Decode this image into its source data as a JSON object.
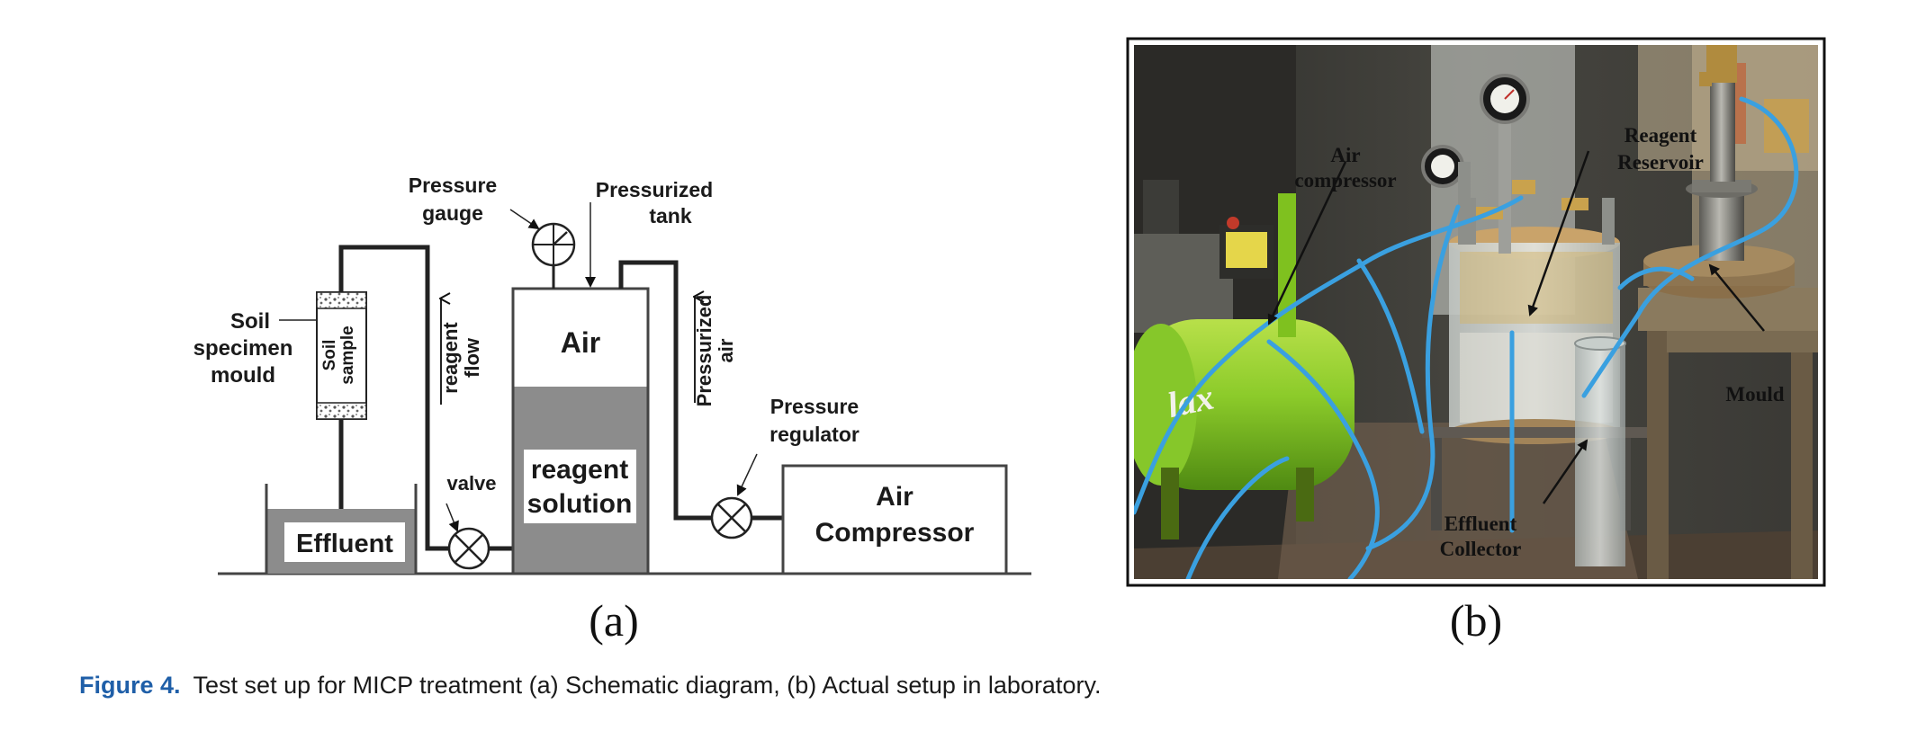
{
  "figure": {
    "caption_label": "Figure 4.",
    "caption_text": "Test set up for MICP treatment (a) Schematic diagram, (b) Actual setup in laboratory.",
    "accent_color": "#1f5fa8"
  },
  "panel_a": {
    "sublabel": "(a)",
    "labels": {
      "pressure_gauge_1": "Pressure",
      "pressure_gauge_2": "gauge",
      "pressurized_tank_1": "Pressurized",
      "pressurized_tank_2": "tank",
      "soil_mould_1": "Soil",
      "soil_mould_2": "specimen",
      "soil_mould_3": "mould",
      "soil_sample_1": "Soil",
      "soil_sample_2": "sample",
      "reagent_flow_1": "reagent",
      "reagent_flow_2": "flow",
      "air": "Air",
      "pressurized_air_1": "Pressurized",
      "pressurized_air_2": "air",
      "pressure_regulator_1": "Pressure",
      "pressure_regulator_2": "regulator",
      "valve": "valve",
      "reagent_solution_1": "reagent",
      "reagent_solution_2": "solution",
      "effluent": "Effluent",
      "air_compressor_1": "Air",
      "air_compressor_2": "Compressor"
    }
  },
  "panel_b": {
    "sublabel": "(b)",
    "labels": {
      "air_compressor_1": "Air",
      "air_compressor_2": "compressor",
      "reagent_reservoir_1": "Reagent",
      "reagent_reservoir_2": "Reservoir",
      "mould": "Mould",
      "effluent_collector_1": "Effluent",
      "effluent_collector_2": "Collector",
      "brand_text": "lax"
    }
  }
}
